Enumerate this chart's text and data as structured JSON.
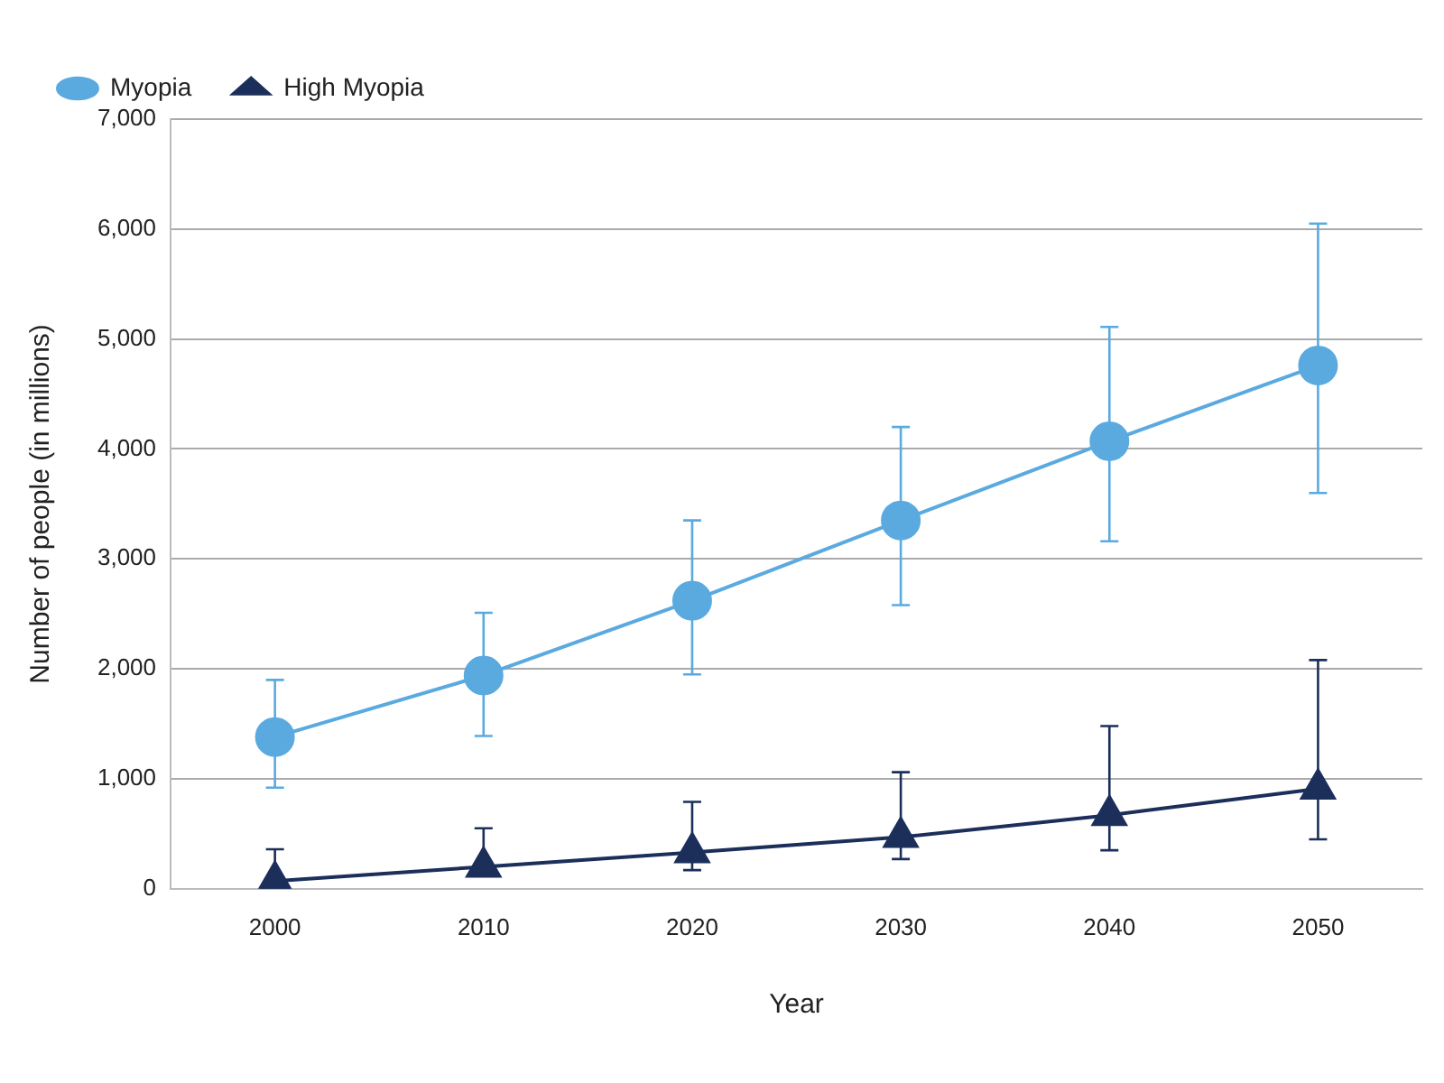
{
  "chart_data": {
    "type": "line",
    "xlabel": "Year",
    "ylabel": "Number of people (in millions)",
    "categories": [
      "2000",
      "2010",
      "2020",
      "2030",
      "2040",
      "2050"
    ],
    "series": [
      {
        "name": "Myopia",
        "color": "#5aaae0",
        "marker": "circle",
        "values": [
          1380,
          1940,
          2620,
          3350,
          4070,
          4760
        ],
        "errors": [
          [
            920,
            1900
          ],
          [
            1390,
            2510
          ],
          [
            1950,
            3350
          ],
          [
            2580,
            4200
          ],
          [
            3160,
            5110
          ],
          [
            3600,
            6050
          ]
        ]
      },
      {
        "name": "High Myopia",
        "color": "#1b2f5a",
        "marker": "triangle",
        "values": [
          70,
          200,
          330,
          470,
          670,
          910
        ],
        "errors": [
          [
            20,
            360
          ],
          [
            130,
            550
          ],
          [
            170,
            790
          ],
          [
            270,
            1060
          ],
          [
            350,
            1480
          ],
          [
            450,
            2080
          ]
        ]
      }
    ],
    "ylim": [
      0,
      7000
    ],
    "yticks": [
      {
        "value": 0,
        "label": "0"
      },
      {
        "value": 1000,
        "label": "1,000"
      },
      {
        "value": 2000,
        "label": "2,000"
      },
      {
        "value": 3000,
        "label": "3,000"
      },
      {
        "value": 4000,
        "label": "4,000"
      },
      {
        "value": 5000,
        "label": "5,000"
      },
      {
        "value": 6000,
        "label": "6,000"
      },
      {
        "value": 7000,
        "label": "7,000"
      }
    ],
    "grid": "y",
    "legend": "top left",
    "line_style": "solid"
  }
}
